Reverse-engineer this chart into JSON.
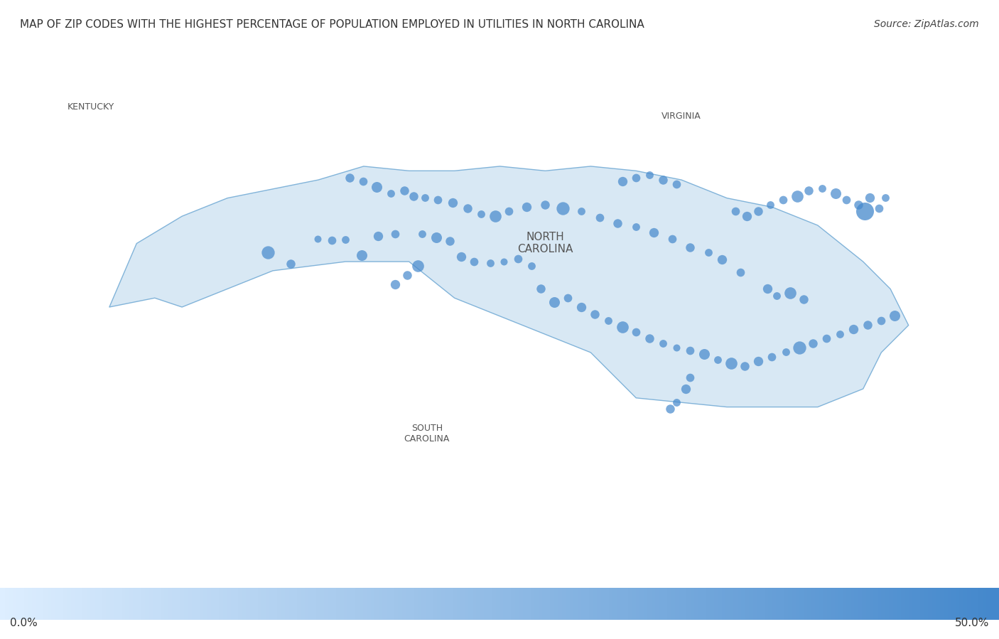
{
  "title": "MAP OF ZIP CODES WITH THE HIGHEST PERCENTAGE OF POPULATION EMPLOYED IN UTILITIES IN NORTH CAROLINA",
  "source": "Source: ZipAtlas.com",
  "title_fontsize": 11,
  "source_fontsize": 10,
  "colorbar_min_label": "0.0%",
  "colorbar_max_label": "50.0%",
  "background_color": "#ffffff",
  "map_bg_color": "#e8e8e8",
  "nc_fill_color": "#c8dff0",
  "nc_border_color": "#5599cc",
  "colorbar_colors": [
    "#ddeeff",
    "#4488cc"
  ],
  "dots": [
    {
      "lon": -81.52,
      "lat": 35.57,
      "size": 18,
      "alpha": 0.7
    },
    {
      "lon": -82.55,
      "lat": 35.6,
      "size": 22,
      "alpha": 0.7
    },
    {
      "lon": -82.3,
      "lat": 35.47,
      "size": 15,
      "alpha": 0.7
    },
    {
      "lon": -82.0,
      "lat": 35.75,
      "size": 12,
      "alpha": 0.7
    },
    {
      "lon": -81.85,
      "lat": 35.73,
      "size": 14,
      "alpha": 0.7
    },
    {
      "lon": -81.7,
      "lat": 35.74,
      "size": 13,
      "alpha": 0.7
    },
    {
      "lon": -81.34,
      "lat": 35.78,
      "size": 16,
      "alpha": 0.7
    },
    {
      "lon": -81.15,
      "lat": 35.8,
      "size": 14,
      "alpha": 0.7
    },
    {
      "lon": -80.85,
      "lat": 35.8,
      "size": 13,
      "alpha": 0.7
    },
    {
      "lon": -80.7,
      "lat": 35.76,
      "size": 18,
      "alpha": 0.7
    },
    {
      "lon": -80.55,
      "lat": 35.72,
      "size": 15,
      "alpha": 0.7
    },
    {
      "lon": -80.42,
      "lat": 35.55,
      "size": 16,
      "alpha": 0.7
    },
    {
      "lon": -80.28,
      "lat": 35.5,
      "size": 14,
      "alpha": 0.7
    },
    {
      "lon": -80.1,
      "lat": 35.48,
      "size": 13,
      "alpha": 0.7
    },
    {
      "lon": -79.95,
      "lat": 35.5,
      "size": 12,
      "alpha": 0.7
    },
    {
      "lon": -79.8,
      "lat": 35.53,
      "size": 14,
      "alpha": 0.7
    },
    {
      "lon": -79.65,
      "lat": 35.45,
      "size": 13,
      "alpha": 0.7
    },
    {
      "lon": -79.55,
      "lat": 35.2,
      "size": 15,
      "alpha": 0.7
    },
    {
      "lon": -79.4,
      "lat": 35.05,
      "size": 18,
      "alpha": 0.7
    },
    {
      "lon": -79.25,
      "lat": 35.1,
      "size": 14,
      "alpha": 0.7
    },
    {
      "lon": -79.1,
      "lat": 35.0,
      "size": 16,
      "alpha": 0.7
    },
    {
      "lon": -78.95,
      "lat": 34.92,
      "size": 15,
      "alpha": 0.7
    },
    {
      "lon": -78.8,
      "lat": 34.85,
      "size": 13,
      "alpha": 0.7
    },
    {
      "lon": -78.65,
      "lat": 34.78,
      "size": 20,
      "alpha": 0.7
    },
    {
      "lon": -78.5,
      "lat": 34.72,
      "size": 14,
      "alpha": 0.7
    },
    {
      "lon": -78.35,
      "lat": 34.65,
      "size": 15,
      "alpha": 0.7
    },
    {
      "lon": -78.2,
      "lat": 34.6,
      "size": 13,
      "alpha": 0.7
    },
    {
      "lon": -78.05,
      "lat": 34.55,
      "size": 12,
      "alpha": 0.7
    },
    {
      "lon": -77.9,
      "lat": 34.52,
      "size": 14,
      "alpha": 0.7
    },
    {
      "lon": -77.75,
      "lat": 34.48,
      "size": 18,
      "alpha": 0.7
    },
    {
      "lon": -77.6,
      "lat": 34.42,
      "size": 13,
      "alpha": 0.7
    },
    {
      "lon": -77.45,
      "lat": 34.38,
      "size": 20,
      "alpha": 0.7
    },
    {
      "lon": -77.3,
      "lat": 34.35,
      "size": 15,
      "alpha": 0.7
    },
    {
      "lon": -77.15,
      "lat": 34.4,
      "size": 16,
      "alpha": 0.7
    },
    {
      "lon": -77.0,
      "lat": 34.45,
      "size": 14,
      "alpha": 0.7
    },
    {
      "lon": -76.85,
      "lat": 34.5,
      "size": 13,
      "alpha": 0.7
    },
    {
      "lon": -76.7,
      "lat": 34.55,
      "size": 22,
      "alpha": 0.7
    },
    {
      "lon": -76.55,
      "lat": 34.6,
      "size": 15,
      "alpha": 0.7
    },
    {
      "lon": -76.4,
      "lat": 34.65,
      "size": 14,
      "alpha": 0.7
    },
    {
      "lon": -76.25,
      "lat": 34.7,
      "size": 13,
      "alpha": 0.7
    },
    {
      "lon": -76.1,
      "lat": 34.75,
      "size": 16,
      "alpha": 0.7
    },
    {
      "lon": -75.95,
      "lat": 34.8,
      "size": 15,
      "alpha": 0.7
    },
    {
      "lon": -75.8,
      "lat": 34.85,
      "size": 14,
      "alpha": 0.7
    },
    {
      "lon": -75.65,
      "lat": 34.9,
      "size": 18,
      "alpha": 0.7
    },
    {
      "lon": -77.05,
      "lat": 35.2,
      "size": 16,
      "alpha": 0.7
    },
    {
      "lon": -76.95,
      "lat": 35.12,
      "size": 13,
      "alpha": 0.7
    },
    {
      "lon": -76.8,
      "lat": 35.15,
      "size": 20,
      "alpha": 0.7
    },
    {
      "lon": -76.65,
      "lat": 35.08,
      "size": 15,
      "alpha": 0.7
    },
    {
      "lon": -77.35,
      "lat": 35.38,
      "size": 14,
      "alpha": 0.7
    },
    {
      "lon": -77.55,
      "lat": 35.52,
      "size": 16,
      "alpha": 0.7
    },
    {
      "lon": -77.7,
      "lat": 35.6,
      "size": 13,
      "alpha": 0.7
    },
    {
      "lon": -77.9,
      "lat": 35.65,
      "size": 15,
      "alpha": 0.7
    },
    {
      "lon": -78.1,
      "lat": 35.75,
      "size": 14,
      "alpha": 0.7
    },
    {
      "lon": -78.3,
      "lat": 35.82,
      "size": 16,
      "alpha": 0.7
    },
    {
      "lon": -78.5,
      "lat": 35.88,
      "size": 13,
      "alpha": 0.7
    },
    {
      "lon": -78.7,
      "lat": 35.92,
      "size": 15,
      "alpha": 0.7
    },
    {
      "lon": -78.9,
      "lat": 35.98,
      "size": 14,
      "alpha": 0.7
    },
    {
      "lon": -79.1,
      "lat": 36.05,
      "size": 13,
      "alpha": 0.7
    },
    {
      "lon": -79.3,
      "lat": 36.08,
      "size": 22,
      "alpha": 0.7
    },
    {
      "lon": -79.5,
      "lat": 36.12,
      "size": 15,
      "alpha": 0.7
    },
    {
      "lon": -79.7,
      "lat": 36.1,
      "size": 16,
      "alpha": 0.7
    },
    {
      "lon": -79.9,
      "lat": 36.05,
      "size": 14,
      "alpha": 0.7
    },
    {
      "lon": -80.05,
      "lat": 36.0,
      "size": 20,
      "alpha": 0.7
    },
    {
      "lon": -80.2,
      "lat": 36.02,
      "size": 13,
      "alpha": 0.7
    },
    {
      "lon": -80.35,
      "lat": 36.08,
      "size": 15,
      "alpha": 0.7
    },
    {
      "lon": -80.52,
      "lat": 36.15,
      "size": 16,
      "alpha": 0.7
    },
    {
      "lon": -80.68,
      "lat": 36.18,
      "size": 14,
      "alpha": 0.7
    },
    {
      "lon": -80.82,
      "lat": 36.2,
      "size": 13,
      "alpha": 0.7
    },
    {
      "lon": -80.95,
      "lat": 36.22,
      "size": 15,
      "alpha": 0.7
    },
    {
      "lon": -75.98,
      "lat": 36.05,
      "size": 30,
      "alpha": 0.75
    },
    {
      "lon": -75.82,
      "lat": 36.08,
      "size": 14,
      "alpha": 0.7
    },
    {
      "lon": -75.75,
      "lat": 36.2,
      "size": 13,
      "alpha": 0.7
    },
    {
      "lon": -75.92,
      "lat": 36.2,
      "size": 16,
      "alpha": 0.7
    },
    {
      "lon": -76.05,
      "lat": 36.12,
      "size": 15,
      "alpha": 0.7
    },
    {
      "lon": -76.18,
      "lat": 36.18,
      "size": 14,
      "alpha": 0.7
    },
    {
      "lon": -76.3,
      "lat": 36.25,
      "size": 18,
      "alpha": 0.7
    },
    {
      "lon": -76.45,
      "lat": 36.3,
      "size": 13,
      "alpha": 0.7
    },
    {
      "lon": -76.6,
      "lat": 36.28,
      "size": 15,
      "alpha": 0.7
    },
    {
      "lon": -76.72,
      "lat": 36.22,
      "size": 20,
      "alpha": 0.7
    },
    {
      "lon": -76.88,
      "lat": 36.18,
      "size": 14,
      "alpha": 0.7
    },
    {
      "lon": -77.02,
      "lat": 36.12,
      "size": 13,
      "alpha": 0.7
    },
    {
      "lon": -77.15,
      "lat": 36.05,
      "size": 15,
      "alpha": 0.7
    },
    {
      "lon": -77.28,
      "lat": 36.0,
      "size": 16,
      "alpha": 0.7
    },
    {
      "lon": -77.4,
      "lat": 36.05,
      "size": 14,
      "alpha": 0.7
    },
    {
      "lon": -81.65,
      "lat": 36.42,
      "size": 15,
      "alpha": 0.7
    },
    {
      "lon": -81.5,
      "lat": 36.38,
      "size": 14,
      "alpha": 0.7
    },
    {
      "lon": -81.35,
      "lat": 36.32,
      "size": 18,
      "alpha": 0.7
    },
    {
      "lon": -81.2,
      "lat": 36.25,
      "size": 13,
      "alpha": 0.7
    },
    {
      "lon": -81.05,
      "lat": 36.28,
      "size": 15,
      "alpha": 0.7
    },
    {
      "lon": -78.65,
      "lat": 36.38,
      "size": 16,
      "alpha": 0.7
    },
    {
      "lon": -78.5,
      "lat": 36.42,
      "size": 14,
      "alpha": 0.7
    },
    {
      "lon": -78.35,
      "lat": 36.45,
      "size": 13,
      "alpha": 0.7
    },
    {
      "lon": -78.2,
      "lat": 36.4,
      "size": 15,
      "alpha": 0.7
    },
    {
      "lon": -78.05,
      "lat": 36.35,
      "size": 14,
      "alpha": 0.7
    },
    {
      "lon": -80.9,
      "lat": 35.45,
      "size": 20,
      "alpha": 0.7
    },
    {
      "lon": -81.02,
      "lat": 35.35,
      "size": 15,
      "alpha": 0.7
    },
    {
      "lon": -81.15,
      "lat": 35.25,
      "size": 16,
      "alpha": 0.7
    },
    {
      "lon": -77.9,
      "lat": 34.22,
      "size": 14,
      "alpha": 0.7
    },
    {
      "lon": -77.95,
      "lat": 34.1,
      "size": 16,
      "alpha": 0.7
    },
    {
      "lon": -78.05,
      "lat": 33.95,
      "size": 13,
      "alpha": 0.7
    },
    {
      "lon": -78.12,
      "lat": 33.88,
      "size": 15,
      "alpha": 0.7
    }
  ],
  "dot_color": "#4488cc",
  "nc_label": "NORTH\nCAROLINA",
  "nc_label_lon": -79.0,
  "nc_label_lat": 35.55,
  "nc_label_fontsize": 13,
  "nc_label_color": "#555555"
}
